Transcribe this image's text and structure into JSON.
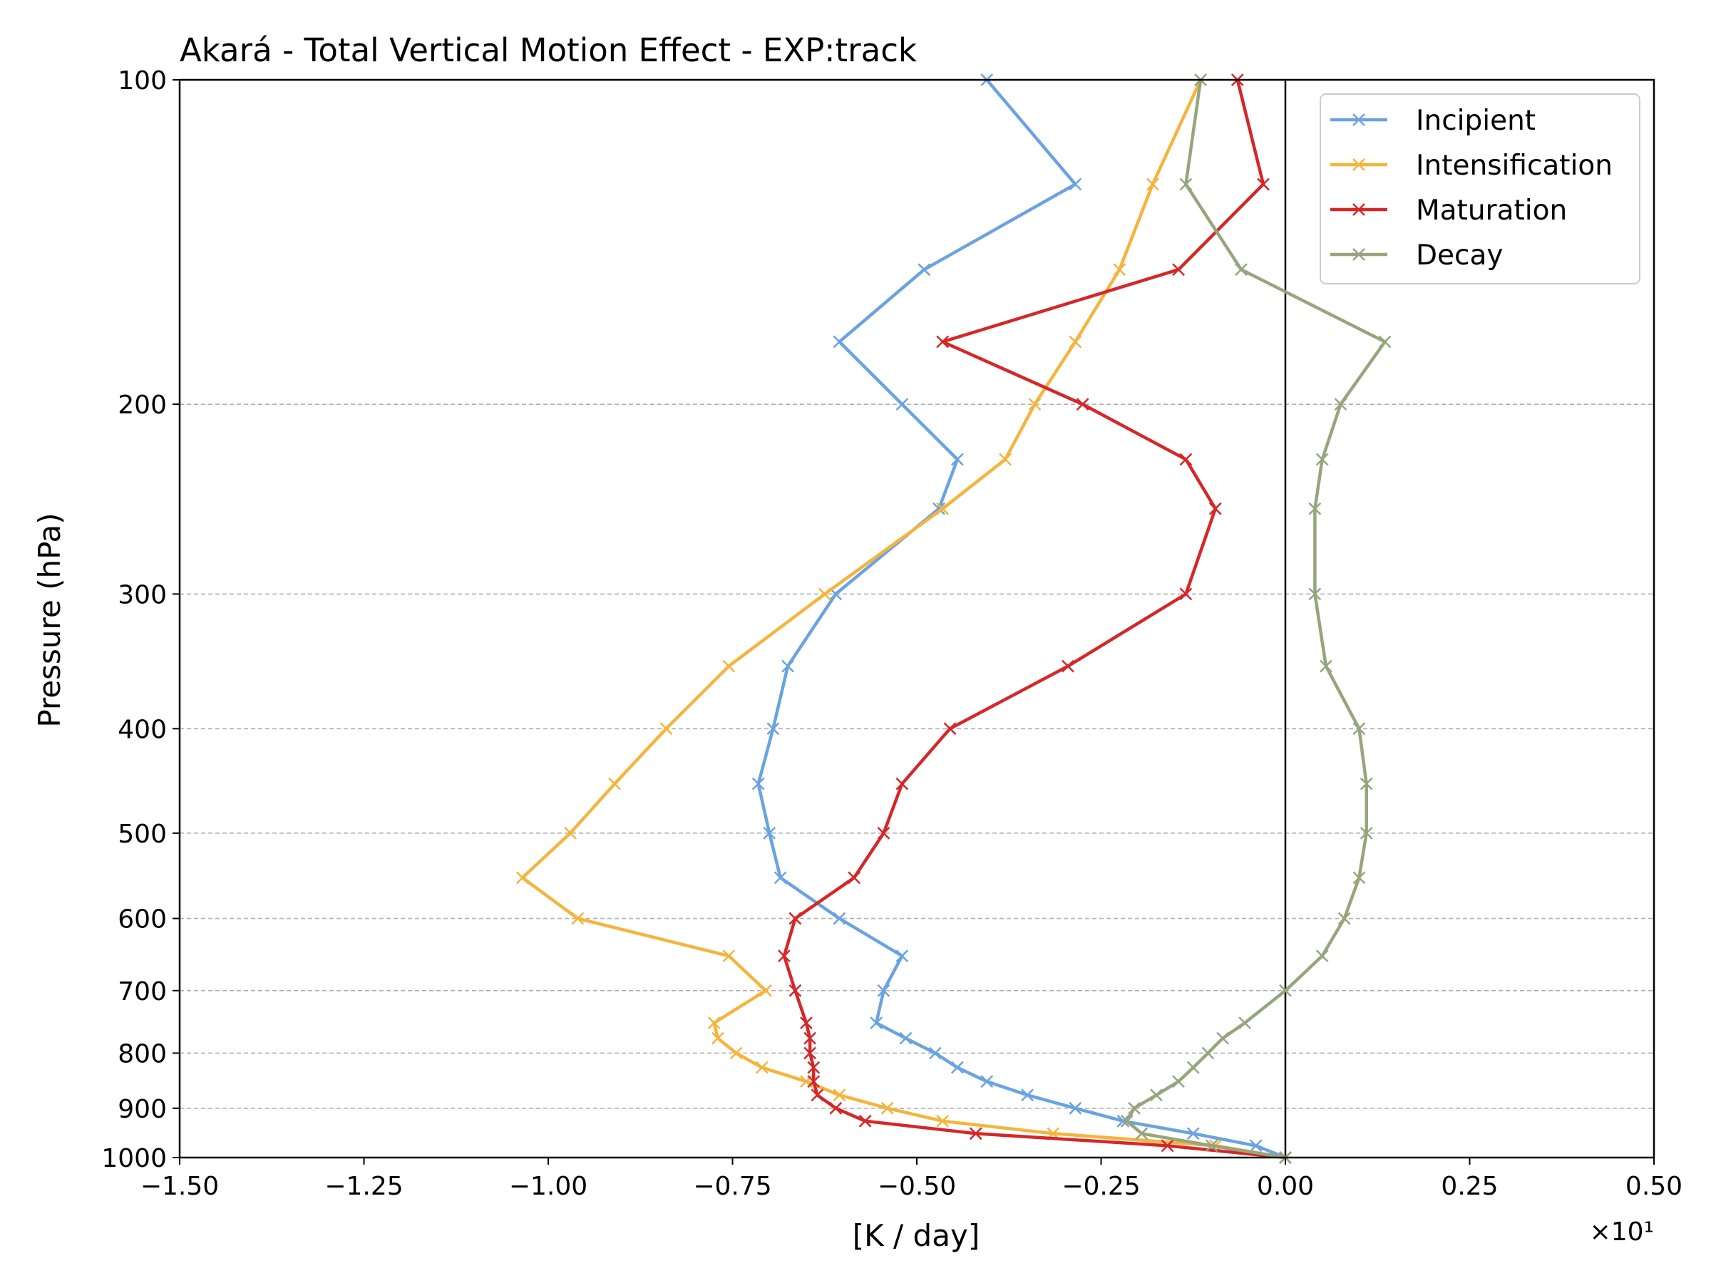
{
  "chart_data": {
    "type": "line",
    "title": "Akará - Total Vertical Motion Effect - EXP:track",
    "xlabel": "[K / day]",
    "ylabel": "Pressure (hPa)",
    "x_offset_label": "×10¹",
    "xlim": [
      -1.5,
      0.5
    ],
    "ylim": [
      1000,
      100
    ],
    "yscale": "log",
    "xticks": [
      "−1.50",
      "−1.25",
      "−1.00",
      "−0.75",
      "−0.50",
      "−0.25",
      "0.00",
      "0.25",
      "0.50"
    ],
    "yticks": [
      "100",
      "200",
      "300",
      "400",
      "500",
      "600",
      "700",
      "800",
      "900",
      "1000"
    ],
    "grid": "horizontal dashed",
    "zero_line": true,
    "legend_position": "top-right",
    "pressure": [
      1000,
      975,
      950,
      925,
      900,
      875,
      850,
      825,
      800,
      775,
      750,
      700,
      650,
      600,
      550,
      500,
      450,
      400,
      350,
      300,
      250,
      225,
      200,
      175,
      150,
      125,
      100
    ],
    "series": [
      {
        "name": "Incipient",
        "color": "#6aa3e0",
        "values": [
          0.0,
          -0.04,
          -0.125,
          -0.22,
          -0.285,
          -0.35,
          -0.405,
          -0.445,
          -0.475,
          -0.515,
          -0.555,
          -0.545,
          -0.52,
          -0.605,
          -0.685,
          -0.7,
          -0.715,
          -0.695,
          -0.675,
          -0.61,
          -0.47,
          -0.445,
          -0.52,
          -0.605,
          -0.49,
          -0.285,
          -0.405
        ]
      },
      {
        "name": "Intensification",
        "color": "#f5b43c",
        "values": [
          0.0,
          -0.095,
          -0.315,
          -0.465,
          -0.54,
          -0.605,
          -0.65,
          -0.71,
          -0.745,
          -0.77,
          -0.775,
          -0.705,
          -0.755,
          -0.96,
          -1.035,
          -0.97,
          -0.91,
          -0.84,
          -0.755,
          -0.625,
          -0.465,
          -0.38,
          -0.34,
          -0.285,
          -0.225,
          -0.18,
          -0.115
        ]
      },
      {
        "name": "Maturation",
        "color": "#d62728",
        "values": [
          0.0,
          -0.16,
          -0.42,
          -0.57,
          -0.61,
          -0.635,
          -0.64,
          -0.64,
          -0.645,
          -0.645,
          -0.65,
          -0.665,
          -0.68,
          -0.665,
          -0.585,
          -0.545,
          -0.52,
          -0.455,
          -0.295,
          -0.135,
          -0.095,
          -0.135,
          -0.275,
          -0.465,
          -0.145,
          -0.03,
          -0.065
        ]
      },
      {
        "name": "Decay",
        "color": "#97a57c",
        "values": [
          0.0,
          -0.1,
          -0.195,
          -0.215,
          -0.205,
          -0.175,
          -0.145,
          -0.125,
          -0.105,
          -0.085,
          -0.055,
          0.0,
          0.05,
          0.08,
          0.1,
          0.11,
          0.11,
          0.1,
          0.055,
          0.04,
          0.04,
          0.05,
          0.075,
          0.135,
          -0.06,
          -0.135,
          -0.115
        ]
      }
    ]
  }
}
